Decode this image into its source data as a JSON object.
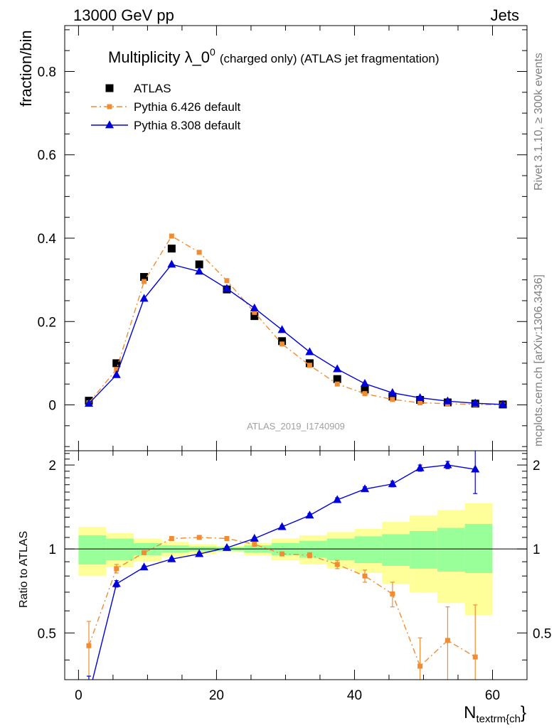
{
  "header": {
    "beam": "13000 GeV pp",
    "process": "Jets"
  },
  "side_labels": {
    "rivet": "Rivet 3.1.10, ≥ 300k events",
    "mcplots": "mcplots.cern.ch [arXiv:1306.3436]"
  },
  "watermark": "ATLAS_2019_I1740909",
  "chart_data": [
    {
      "type": "scatter",
      "title": "Multiplicity λ_0",
      "title_sup": "0",
      "title_suffix": "(charged only) (ATLAS jet fragmentation)",
      "ylabel": "fraction/bin",
      "xlim": [
        -2,
        65
      ],
      "ylim": [
        -0.11,
        0.91
      ],
      "yticks": [
        0,
        0.2,
        0.4,
        0.6,
        0.8
      ],
      "yticklabels": [
        "0",
        "0.2",
        "0.4",
        "0.6",
        "0.8"
      ],
      "legend_position": "top-left",
      "series": [
        {
          "name": "ATLAS",
          "color": "#000000",
          "marker": "square",
          "line": "none",
          "x": [
            1.5,
            5.5,
            9.5,
            13.5,
            17.5,
            21.5,
            25.5,
            29.5,
            33.5,
            37.5,
            41.5,
            45.5,
            49.5,
            53.5,
            57.5,
            61.5
          ],
          "y": [
            0.01,
            0.1,
            0.307,
            0.375,
            0.337,
            0.277,
            0.213,
            0.153,
            0.1,
            0.062,
            0.037,
            0.02,
            0.012,
            0.006,
            0.003,
            0.001
          ]
        },
        {
          "name": "Pythia 6.426 default",
          "color": "#f28c33",
          "marker": "square",
          "line": "dashdot",
          "x": [
            1.5,
            5.5,
            9.5,
            13.5,
            17.5,
            21.5,
            25.5,
            29.5,
            33.5,
            37.5,
            41.5,
            45.5,
            49.5,
            53.5,
            57.5,
            61.5
          ],
          "y": [
            0.005,
            0.085,
            0.296,
            0.405,
            0.366,
            0.298,
            0.222,
            0.146,
            0.095,
            0.05,
            0.027,
            0.013,
            0.005,
            0.003,
            0.001,
            0.0
          ]
        },
        {
          "name": "Pythia 8.308 default",
          "color": "#0000dd",
          "marker": "triangle",
          "line": "solid",
          "x": [
            1.5,
            5.5,
            9.5,
            13.5,
            17.5,
            21.5,
            25.5,
            29.5,
            33.5,
            37.5,
            41.5,
            45.5,
            49.5,
            53.5,
            57.5,
            61.5
          ],
          "y": [
            0.003,
            0.072,
            0.255,
            0.337,
            0.32,
            0.279,
            0.232,
            0.18,
            0.127,
            0.086,
            0.051,
            0.029,
            0.017,
            0.009,
            0.004,
            0.001
          ]
        }
      ]
    },
    {
      "type": "line",
      "ylabel": "Ratio to ATLAS",
      "xlabel": "N",
      "xlabel_sub": "textrm{ch",
      "xlabel_brace": "}",
      "xlim": [
        -2,
        65
      ],
      "ylim": [
        0.34,
        2.25
      ],
      "xticks": [
        0,
        20,
        40,
        60
      ],
      "xticklabels": [
        "0",
        "20",
        "40",
        "60"
      ],
      "yticks": [
        0.5,
        1,
        2
      ],
      "yticklabels": [
        "0.5",
        "1",
        "2"
      ],
      "reference_line": 1,
      "bands": {
        "x_edges": [
          0,
          4,
          8,
          12,
          16,
          20,
          24,
          28,
          32,
          36,
          40,
          44,
          48,
          52,
          56,
          60
        ],
        "inner_low": [
          0.88,
          0.91,
          0.95,
          0.97,
          0.98,
          0.985,
          0.97,
          0.95,
          0.93,
          0.91,
          0.89,
          0.87,
          0.85,
          0.83,
          0.82
        ],
        "inner_high": [
          1.12,
          1.09,
          1.05,
          1.03,
          1.02,
          1.015,
          1.03,
          1.05,
          1.07,
          1.09,
          1.11,
          1.13,
          1.16,
          1.19,
          1.23
        ],
        "outer_low": [
          0.8,
          0.86,
          0.9,
          0.94,
          0.96,
          0.975,
          0.95,
          0.91,
          0.88,
          0.85,
          0.82,
          0.75,
          0.7,
          0.64,
          0.58
        ],
        "outer_high": [
          1.2,
          1.14,
          1.09,
          1.06,
          1.04,
          1.025,
          1.05,
          1.09,
          1.12,
          1.15,
          1.18,
          1.25,
          1.32,
          1.38,
          1.46
        ],
        "inner_color": "#99ff99",
        "outer_color": "#ffff99"
      },
      "series": [
        {
          "name": "Pythia 6.426 default",
          "color": "#f28c33",
          "marker": "square",
          "line": "dashdot",
          "x": [
            1.5,
            5.5,
            9.5,
            13.5,
            17.5,
            21.5,
            25.5,
            29.5,
            33.5,
            37.5,
            41.5,
            45.5,
            49.5,
            53.5,
            57.5
          ],
          "y": [
            0.45,
            0.85,
            0.97,
            1.09,
            1.1,
            1.09,
            1.04,
            0.96,
            0.95,
            0.88,
            0.8,
            0.69,
            0.38,
            0.47,
            0.41
          ],
          "err": [
            0.1,
            0.03,
            0.015,
            0.01,
            0.01,
            0.01,
            0.01,
            0.015,
            0.02,
            0.03,
            0.04,
            0.07,
            0.1,
            0.15,
            0.22
          ]
        },
        {
          "name": "Pythia 8.308 default",
          "color": "#0000dd",
          "marker": "triangle",
          "line": "solid",
          "x": [
            1.5,
            5.5,
            9.5,
            13.5,
            17.5,
            21.5,
            25.5,
            29.5,
            33.5,
            37.5,
            41.5,
            45.5,
            49.5,
            53.5,
            57.5
          ],
          "y": [
            0.3,
            0.75,
            0.86,
            0.92,
            0.96,
            1.01,
            1.09,
            1.2,
            1.32,
            1.5,
            1.64,
            1.71,
            1.95,
            2.0,
            1.93
          ],
          "err": [
            0.05,
            0.02,
            0.01,
            0.01,
            0.01,
            0.01,
            0.01,
            0.015,
            0.02,
            0.025,
            0.03,
            0.04,
            0.05,
            0.06,
            0.35
          ]
        }
      ]
    }
  ]
}
